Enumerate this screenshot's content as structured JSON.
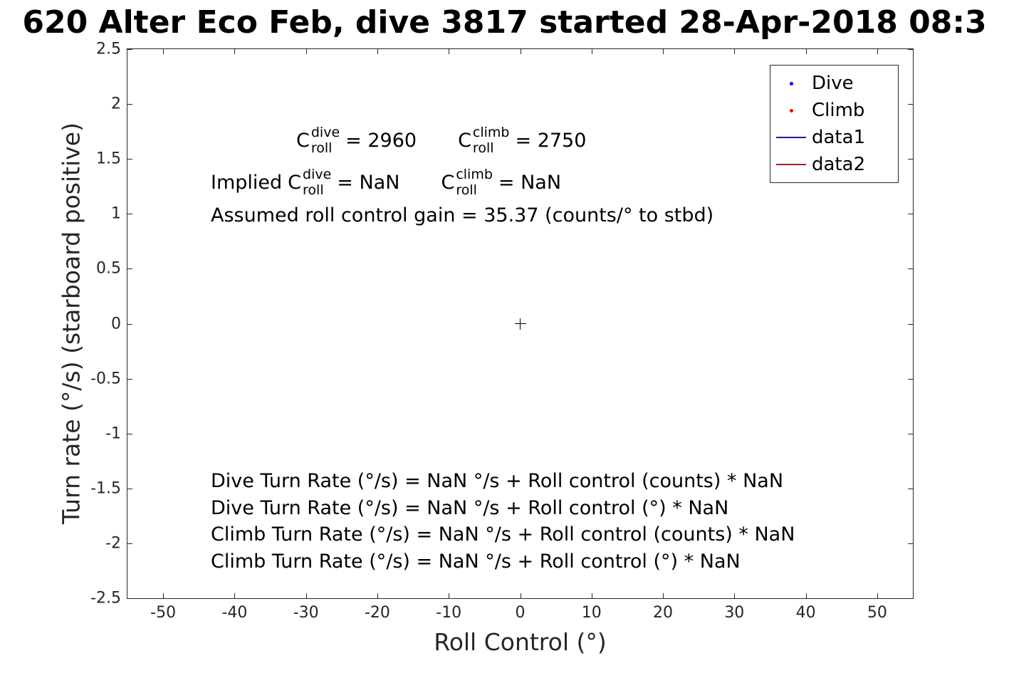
{
  "chart_data": {
    "type": "scatter",
    "title": "620 Alter Eco Feb, dive 3817 started 28-Apr-2018 08:3",
    "xlabel": "Roll Control (°)",
    "ylabel": "Turn rate (°/s) (starboard positive)",
    "xlim": [
      -55,
      55
    ],
    "ylim": [
      -2.5,
      2.5
    ],
    "x_ticks": [
      -50,
      -40,
      -30,
      -20,
      -10,
      0,
      10,
      20,
      30,
      40,
      50
    ],
    "y_ticks": [
      -2.5,
      -2,
      -1.5,
      -1,
      -0.5,
      0,
      0.5,
      1,
      1.5,
      2,
      2.5
    ],
    "grid": false,
    "legend_position": "top-right",
    "series": [
      {
        "name": "Dive",
        "type": "scatter",
        "marker": "dot",
        "color": "#0000ff",
        "points": []
      },
      {
        "name": "Climb",
        "type": "scatter",
        "marker": "dot",
        "color": "#ff0000",
        "points": []
      },
      {
        "name": "data1",
        "type": "line",
        "marker": "none",
        "color": "#0000ff",
        "points": []
      },
      {
        "name": "data2",
        "type": "line",
        "marker": "none",
        "color": "#8b2a2a",
        "points": []
      }
    ],
    "markers": [
      {
        "x": 0,
        "y": 0,
        "symbol": "+",
        "color": "#000000"
      }
    ]
  },
  "annotations": {
    "coeff": {
      "dive": {
        "base": "C",
        "sup": "dive",
        "sub": "roll",
        "value": "= 2960"
      },
      "climb": {
        "base": "C",
        "sup": "climb",
        "sub": "roll",
        "value": "= 2750"
      }
    },
    "implied": {
      "prefix": "Implied",
      "dive": {
        "base": "C",
        "sup": "dive",
        "sub": "roll",
        "value": "= NaN"
      },
      "climb": {
        "base": "C",
        "sup": "climb",
        "sub": "roll",
        "value": "= NaN"
      }
    },
    "gain": "Assumed roll control gain = 35.37 (counts/° to stbd)",
    "fits": [
      "Dive Turn Rate (°/s) = NaN °/s + Roll control (counts) * NaN",
      "Dive Turn Rate (°/s) = NaN °/s + Roll control (°) * NaN",
      "Climb Turn Rate (°/s) = NaN °/s + Roll control (counts) * NaN",
      "Climb Turn Rate (°/s) = NaN °/s + Roll control (°) * NaN"
    ]
  }
}
